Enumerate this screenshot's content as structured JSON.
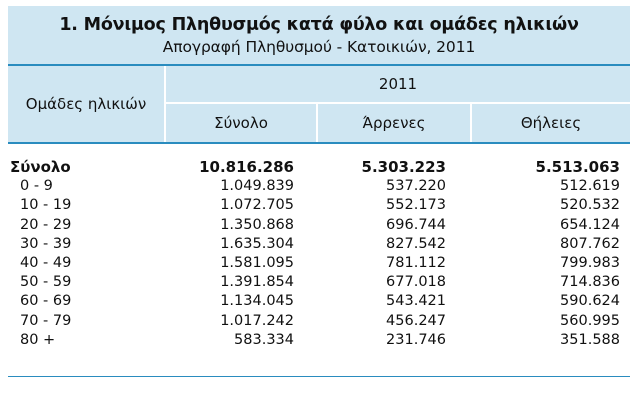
{
  "title": "1. Μόνιμος Πληθυσμός κατά φύλο και ομάδες ηλικιών",
  "subtitle": "Απογραφή Πληθυσμού - Κατοικιών, 2011",
  "header": {
    "group_label": "Ομάδες ηλικιών",
    "year": "2011",
    "col_total": "Σύνολο",
    "col_male": "Άρρενες",
    "col_female": "Θήλειες"
  },
  "rows": [
    {
      "label": "Σύνολο",
      "total": "10.816.286",
      "male": "5.303.223",
      "female": "5.513.063"
    },
    {
      "label": "0 -  9",
      "total": "1.049.839",
      "male": "537.220",
      "female": "512.619"
    },
    {
      "label": "10 - 19",
      "total": "1.072.705",
      "male": "552.173",
      "female": "520.532"
    },
    {
      "label": "20 - 29",
      "total": "1.350.868",
      "male": "696.744",
      "female": "654.124"
    },
    {
      "label": "30 - 39",
      "total": "1.635.304",
      "male": "827.542",
      "female": "807.762"
    },
    {
      "label": "40 - 49",
      "total": "1.581.095",
      "male": "781.112",
      "female": "799.983"
    },
    {
      "label": "50 - 59",
      "total": "1.391.854",
      "male": "677.018",
      "female": "714.836"
    },
    {
      "label": "60 - 69",
      "total": "1.134.045",
      "male": "543.421",
      "female": "590.624"
    },
    {
      "label": "70 - 79",
      "total": "1.017.242",
      "male": "456.247",
      "female": "560.995"
    },
    {
      "label": "80 +",
      "total": "583.334",
      "male": "231.746",
      "female": "351.588"
    }
  ],
  "colors": {
    "header_bg": "#cfe6f2",
    "accent_line": "#2a8cbf"
  }
}
